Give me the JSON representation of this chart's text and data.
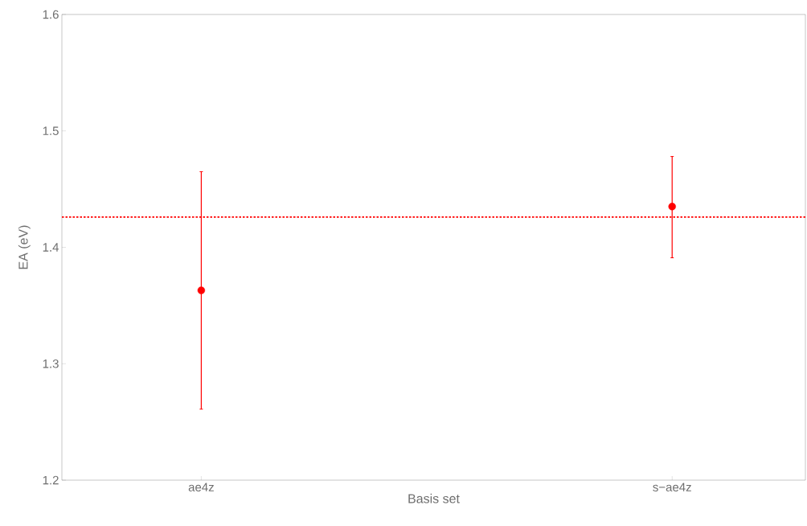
{
  "chart_data": {
    "type": "scatter",
    "xlabel": "Basis set",
    "ylabel": "EA (eV)",
    "categories": [
      "ae4z",
      "s−ae4z"
    ],
    "values": [
      1.363,
      1.435
    ],
    "errors": [
      [
        1.261,
        1.465
      ],
      [
        1.391,
        1.478
      ]
    ],
    "color": "#ff0000",
    "marker": "circle",
    "ylim": [
      1.2,
      1.6
    ],
    "yticks": [
      1.2,
      1.3,
      1.4,
      1.5,
      1.6
    ],
    "ref_lines": [
      {
        "axis": "y",
        "value": 1.426,
        "color": "#ff0000",
        "line_style": "dotted"
      }
    ],
    "grid": false
  }
}
